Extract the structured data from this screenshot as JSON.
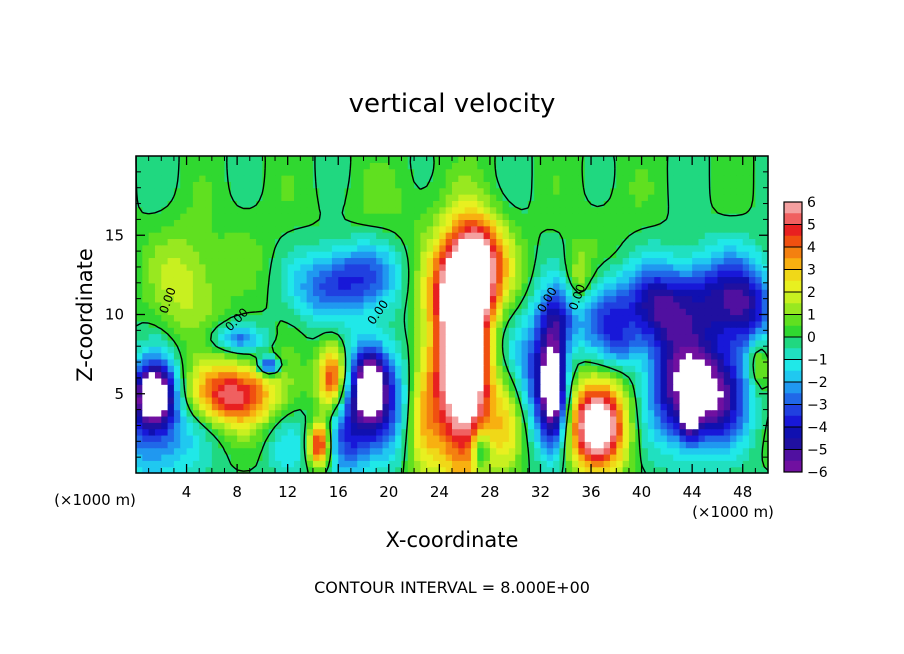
{
  "chart_data": {
    "type": "heatmap",
    "title": "vertical velocity",
    "xlabel": "X-coordinate",
    "ylabel": "Z-coordinate",
    "x_unit_left": "(×1000 m)",
    "x_unit_right": "(×1000 m)",
    "footer": "CONTOUR INTERVAL = 8.000E+00",
    "xlim": [
      0,
      50
    ],
    "ylim": [
      0,
      20
    ],
    "x_ticks": [
      4,
      8,
      12,
      16,
      20,
      24,
      28,
      32,
      36,
      40,
      44,
      48
    ],
    "y_ticks": [
      5,
      10,
      15
    ],
    "colorbar": {
      "range": [
        -6,
        6
      ],
      "ticks": [
        6,
        5,
        4,
        3,
        2,
        1,
        0,
        -1,
        -2,
        -3,
        -4,
        -5,
        -6
      ],
      "levels": [
        {
          "lo": 5.5,
          "color": "#f4a0a0"
        },
        {
          "lo": 5,
          "color": "#f06060"
        },
        {
          "lo": 4.5,
          "color": "#e82020"
        },
        {
          "lo": 4,
          "color": "#f05010"
        },
        {
          "lo": 3.5,
          "color": "#f48010"
        },
        {
          "lo": 3,
          "color": "#f8b010"
        },
        {
          "lo": 2.5,
          "color": "#f0d818"
        },
        {
          "lo": 2,
          "color": "#e8f020"
        },
        {
          "lo": 1.5,
          "color": "#c8f020"
        },
        {
          "lo": 1,
          "color": "#98e820"
        },
        {
          "lo": 0.5,
          "color": "#60e020"
        },
        {
          "lo": 0,
          "color": "#30d830"
        },
        {
          "lo": -0.5,
          "color": "#20d880"
        },
        {
          "lo": -1,
          "color": "#20e0c0"
        },
        {
          "lo": -1.5,
          "color": "#20e8e8"
        },
        {
          "lo": -2,
          "color": "#20c8f0"
        },
        {
          "lo": -2.5,
          "color": "#2098f0"
        },
        {
          "lo": -3,
          "color": "#2068e8"
        },
        {
          "lo": -3.5,
          "color": "#2040e0"
        },
        {
          "lo": -4,
          "color": "#1818d8"
        },
        {
          "lo": -4.5,
          "color": "#1010b0"
        },
        {
          "lo": -5,
          "color": "#2010a0"
        },
        {
          "lo": -5.5,
          "color": "#5010a0"
        },
        {
          "lo": -6,
          "color": "#7010a0"
        }
      ],
      "above_max_color": "#ffffff",
      "below_min_color": "#ffffff"
    },
    "contour_labels": [
      "0.00",
      "0.00",
      "0.00",
      "0.00",
      "0.00"
    ],
    "features": [
      {
        "x": 1.5,
        "z": 5.0,
        "w": -7.0,
        "sx": 1.1,
        "sz": 1.4
      },
      {
        "x": 1.5,
        "z": 3.0,
        "w": -3.0,
        "sx": 2.5,
        "sz": 2.5
      },
      {
        "x": 7.5,
        "z": 5.0,
        "w": 5.5,
        "sx": 2.6,
        "sz": 1.4
      },
      {
        "x": 4.0,
        "z": 12.0,
        "w": 1.8,
        "sx": 2.0,
        "sz": 2.5
      },
      {
        "x": 9.5,
        "z": 14.5,
        "w": 0.3,
        "sx": 3.0,
        "sz": 3.0
      },
      {
        "x": 8.0,
        "z": 8.5,
        "w": -2.5,
        "sx": 1.5,
        "sz": 0.6
      },
      {
        "x": 10.5,
        "z": 6.8,
        "w": -4.5,
        "sx": 0.6,
        "sz": 0.4
      },
      {
        "x": 12.0,
        "z": 1.5,
        "w": -1.2,
        "sx": 1.2,
        "sz": 1.5
      },
      {
        "x": 14.5,
        "z": 1.8,
        "w": 5.5,
        "sx": 0.6,
        "sz": 1.0
      },
      {
        "x": 15.5,
        "z": 6.0,
        "w": 5.2,
        "sx": 0.8,
        "sz": 1.6
      },
      {
        "x": 16.5,
        "z": 2.5,
        "w": -3.2,
        "sx": 1.2,
        "sz": 2.0
      },
      {
        "x": 18.5,
        "z": 5.8,
        "w": -5.5,
        "sx": 0.9,
        "sz": 1.6
      },
      {
        "x": 19.5,
        "z": 4.5,
        "w": -3.5,
        "sx": 2.0,
        "sz": 2.5
      },
      {
        "x": 17.5,
        "z": 12.5,
        "w": -2.8,
        "sx": 2.5,
        "sz": 1.5
      },
      {
        "x": 15.0,
        "z": 11.5,
        "w": -2.0,
        "sx": 2.0,
        "sz": 1.5
      },
      {
        "x": 26.0,
        "z": 7.0,
        "w": 9.0,
        "sx": 1.8,
        "sz": 4.8
      },
      {
        "x": 26.5,
        "z": 12.0,
        "w": 5.0,
        "sx": 2.0,
        "sz": 1.8
      },
      {
        "x": 27.0,
        "z": 14.5,
        "w": 3.0,
        "sx": 1.5,
        "sz": 1.5
      },
      {
        "x": 28.5,
        "z": 8.5,
        "w": -2.2,
        "sx": 1.3,
        "sz": 2.5
      },
      {
        "x": 27.3,
        "z": 1.5,
        "w": -3.0,
        "sx": 0.5,
        "sz": 1.0
      },
      {
        "x": 29.5,
        "z": 3.0,
        "w": 1.5,
        "sx": 0.8,
        "sz": 2.0
      },
      {
        "x": 22.5,
        "z": 4.0,
        "w": 2.5,
        "sx": 1.0,
        "sz": 3.0
      },
      {
        "x": 31.5,
        "z": 6.5,
        "w": -2.5,
        "sx": 1.0,
        "sz": 2.5
      },
      {
        "x": 33.0,
        "z": 5.5,
        "w": -7.5,
        "sx": 0.8,
        "sz": 2.6
      },
      {
        "x": 33.5,
        "z": 10.0,
        "w": -3.0,
        "sx": 1.2,
        "sz": 1.5
      },
      {
        "x": 35.0,
        "z": 12.0,
        "w": 2.0,
        "sx": 0.8,
        "sz": 1.5
      },
      {
        "x": 36.5,
        "z": 3.0,
        "w": 7.5,
        "sx": 1.6,
        "sz": 2.0
      },
      {
        "x": 37.0,
        "z": 10.0,
        "w": -3.0,
        "sx": 1.5,
        "sz": 1.8
      },
      {
        "x": 38.5,
        "z": 8.0,
        "w": -1.5,
        "sx": 1.0,
        "sz": 1.0
      },
      {
        "x": 41.0,
        "z": 10.5,
        "w": -4.0,
        "sx": 1.8,
        "sz": 1.8
      },
      {
        "x": 43.0,
        "z": 5.5,
        "w": -5.0,
        "sx": 1.8,
        "sz": 2.5
      },
      {
        "x": 43.8,
        "z": 3.5,
        "w": -3.5,
        "sx": 0.5,
        "sz": 1.0
      },
      {
        "x": 46.0,
        "z": 5.0,
        "w": -5.0,
        "sx": 1.8,
        "sz": 2.2
      },
      {
        "x": 45.5,
        "z": 11.0,
        "w": -3.8,
        "sx": 2.5,
        "sz": 2.0
      },
      {
        "x": 48.5,
        "z": 10.5,
        "w": -3.0,
        "sx": 1.5,
        "sz": 2.0
      },
      {
        "x": 49.3,
        "z": 7.0,
        "w": 2.5,
        "sx": 0.6,
        "sz": 1.2
      },
      {
        "x": 37.5,
        "z": 16.0,
        "w": 0.3,
        "sx": 3.0,
        "sz": 3.0
      },
      {
        "x": 20.0,
        "z": 17.0,
        "w": 0.5,
        "sx": 3.0,
        "sz": 2.0
      }
    ]
  }
}
